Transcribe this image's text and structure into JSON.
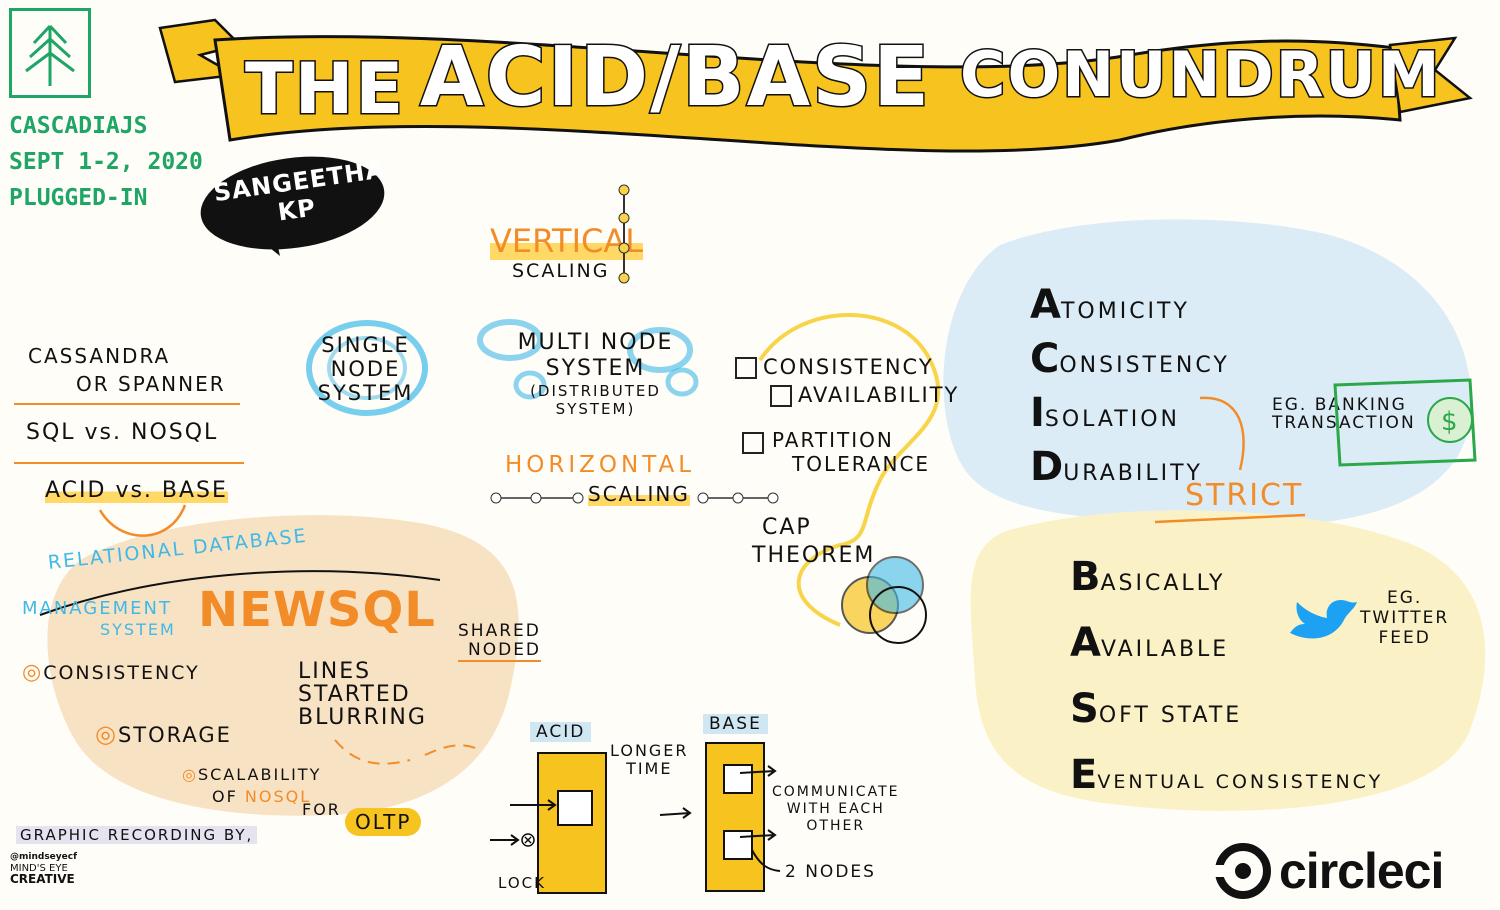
{
  "event": {
    "name": "CASCADIAJS",
    "dates": "SEPT 1-2, 2020",
    "subtitle": "PLUGGED-IN",
    "logo_icon": "tree-icon"
  },
  "title": {
    "word1": "THE",
    "word2": "ACID/BASE",
    "word3": "CONUNDRUM"
  },
  "speaker": {
    "line1": "SANGEETHA",
    "line2": "KP"
  },
  "left_list": {
    "item1_line1": "CASSANDRA",
    "item1_line2": "OR SPANNER",
    "item2": "SQL vs. NOSQL",
    "item3": "ACID vs. BASE"
  },
  "single_node": {
    "line1": "SINGLE",
    "line2": "NODE",
    "line3": "SYSTEM"
  },
  "multi_node": {
    "line1": "MULTI NODE",
    "line2": "SYSTEM",
    "line3": "(DISTRIBUTED",
    "line4": "SYSTEM)"
  },
  "vertical": {
    "line1": "VERTICAL",
    "line2": "SCALING"
  },
  "horizontal": {
    "line1": "HORIZONTAL",
    "line2": "SCALING"
  },
  "cap": {
    "consistency": "CONSISTENCY",
    "availability": "AVAILABILITY",
    "partition_line1": "PARTITION",
    "partition_line2": "TOLERANCE",
    "theorem_line1": "CAP",
    "theorem_line2": "THEOREM"
  },
  "acid": {
    "a_letter": "A",
    "a_rest": "TOMICITY",
    "c_letter": "C",
    "c_rest": "ONSISTENCY",
    "i_letter": "I",
    "i_rest": "SOLATION",
    "d_letter": "D",
    "d_rest": "URABILITY"
  },
  "banking": {
    "line1": "EG. BANKING",
    "line2": "TRANSACTION",
    "icon": "dollar-bill-icon"
  },
  "strict": "STRICT",
  "base": {
    "b_letter": "B",
    "b_rest": "ASICALLY",
    "a_letter": "A",
    "a_rest": "VAILABLE",
    "s_letter": "S",
    "s_rest": "OFT STATE",
    "e_letter": "E",
    "e_rest": "VENTUAL CONSISTENCY"
  },
  "twitter": {
    "line1": "EG.",
    "line2": "TWITTER",
    "line3": "FEED",
    "icon": "twitter-bird-icon"
  },
  "newsql": {
    "rdbms_line1": "RELATIONAL DATABASE",
    "rdbms_line2": "MANAGEMENT",
    "rdbms_line3": "SYSTEM",
    "title": "NEWSQL",
    "consistency": "CONSISTENCY",
    "storage": "STORAGE",
    "scalability": "SCALABILITY",
    "of": "OF",
    "nosql": "NOSQL",
    "for": "FOR",
    "oltp": "OLTP",
    "blur_line1": "LINES",
    "blur_line2": "STARTED",
    "blur_line3": "BLURRING",
    "shared_line1": "SHARED",
    "shared_line2": "NODED"
  },
  "diagram": {
    "acid_label": "ACID",
    "base_label": "BASE",
    "longer_line1": "LONGER",
    "longer_line2": "TIME",
    "lock": "LOCK",
    "comm_line1": "COMMUNICATE",
    "comm_line2": "WITH EACH",
    "comm_line3": "OTHER",
    "nodes": "2 NODES"
  },
  "credit": {
    "line1": "GRAPHIC RECORDING BY,",
    "handle": "@mindseyecf",
    "brand_line1": "MIND'S EYE",
    "brand_line2": "CREATIVE"
  },
  "sponsor": {
    "name": "circleci",
    "icon": "circleci-logo-icon"
  },
  "colors": {
    "yellow": "#f7c31e",
    "orange": "#f28c28",
    "green": "#1fa565",
    "blue_blob": "#dcecf7",
    "yellow_blob": "#fbf1c6",
    "peach_blob": "#f8e2c4",
    "cyan": "#3fb9e8",
    "twitter": "#1da1f2"
  }
}
